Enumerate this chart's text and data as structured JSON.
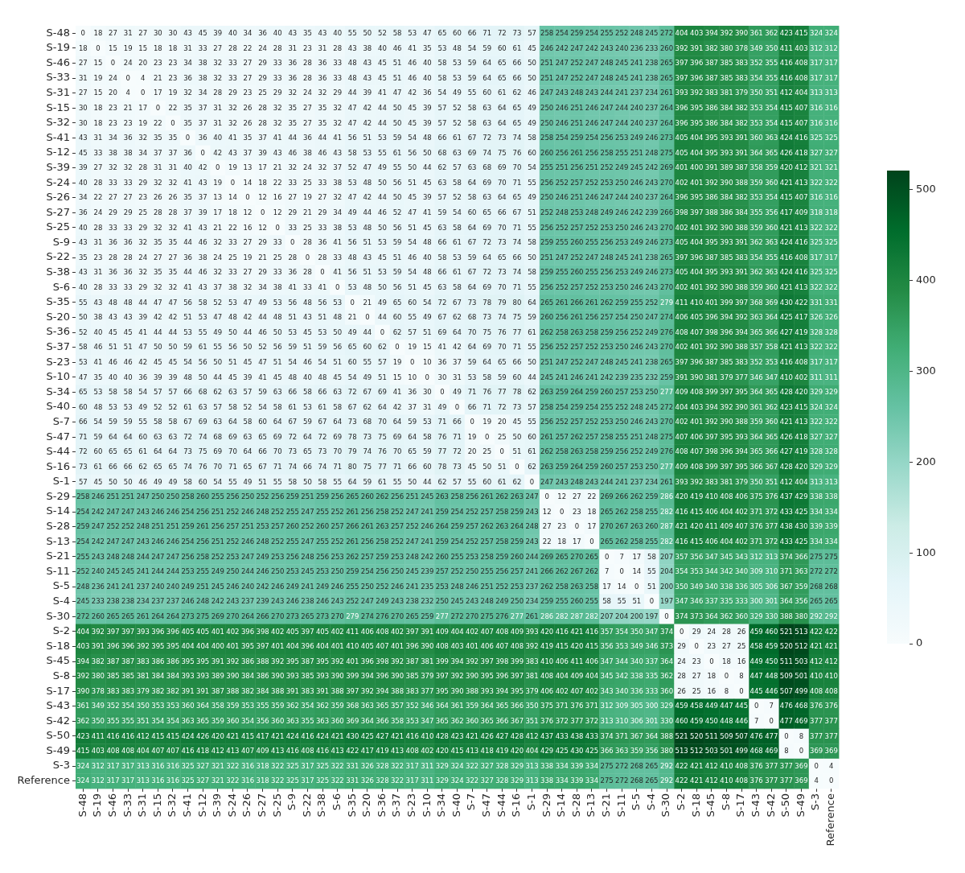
{
  "chart_data": {
    "type": "heatmap",
    "categories": [
      "S-48",
      "S-19",
      "S-46",
      "S-33",
      "S-31",
      "S-15",
      "S-32",
      "S-41",
      "S-12",
      "S-39",
      "S-24",
      "S-26",
      "S-27",
      "S-25",
      "S-9",
      "S-22",
      "S-38",
      "S-6",
      "S-35",
      "S-20",
      "S-36",
      "S-37",
      "S-23",
      "S-10",
      "S-34",
      "S-40",
      "S-7",
      "S-47",
      "S-44",
      "S-16",
      "S-1",
      "S-29",
      "S-14",
      "S-28",
      "S-13",
      "S-21",
      "S-11",
      "S-5",
      "S-4",
      "S-30",
      "S-2",
      "S-18",
      "S-45",
      "S-8",
      "S-17",
      "S-43",
      "S-42",
      "S-50",
      "S-49",
      "S-3",
      "Reference"
    ],
    "y_categories": [
      "S-48",
      "S-19",
      "S-46",
      "S-33",
      "S-31",
      "S-15",
      "S-32",
      "S-41",
      "S-12",
      "S-39",
      "S-24",
      "S-26",
      "S-27",
      "S-25",
      "S-9",
      "S-22",
      "S-38",
      "S-6",
      "S-35",
      "S-20",
      "S-36",
      "S-37",
      "S-23",
      "S-10",
      "S-34",
      "S-40",
      "S-7",
      "S-47",
      "S-44",
      "S-16",
      "S-1",
      "S-29",
      "S-14",
      "S-28",
      "S-13",
      "S-21",
      "S-11",
      "S-5",
      "S-4",
      "S-30",
      "S-2",
      "S-18",
      "S-45",
      "S-8",
      "S-17",
      "S-43",
      "S-42",
      "S-50",
      "S-49",
      "S-3",
      "Reference"
    ],
    "cells": [
      [
        0,
        18,
        27,
        31,
        27,
        30,
        30,
        43,
        45,
        39,
        40,
        34,
        36,
        40,
        43,
        35,
        43,
        40,
        55,
        50,
        52,
        58,
        53,
        47,
        65,
        60,
        66,
        71,
        72,
        73,
        57,
        258,
        254,
        259,
        254,
        255,
        252,
        248,
        245,
        272,
        404,
        403,
        394,
        392,
        390,
        361,
        362,
        423,
        415,
        324,
        324
      ],
      [
        18,
        0,
        15,
        19,
        15,
        18,
        18,
        31,
        33,
        27,
        28,
        22,
        24,
        28,
        31,
        23,
        31,
        28,
        43,
        38,
        40,
        46,
        41,
        35,
        53,
        48,
        54,
        59,
        60,
        61,
        45,
        246,
        242,
        247,
        242,
        243,
        240,
        236,
        233,
        260,
        392,
        391,
        382,
        380,
        378,
        349,
        350,
        411,
        403,
        312,
        312
      ],
      [
        27,
        15,
        0,
        24,
        20,
        23,
        23,
        34,
        38,
        32,
        33,
        27,
        29,
        33,
        36,
        28,
        36,
        33,
        48,
        43,
        45,
        51,
        46,
        40,
        58,
        53,
        59,
        64,
        65,
        66,
        50,
        251,
        247,
        252,
        247,
        248,
        245,
        241,
        238,
        265,
        397,
        396,
        387,
        385,
        383,
        352,
        355,
        416,
        408,
        317,
        317
      ],
      [
        31,
        19,
        24,
        0,
        4,
        21,
        23,
        36,
        38,
        32,
        33,
        27,
        29,
        33,
        36,
        28,
        36,
        33,
        48,
        43,
        45,
        51,
        46,
        40,
        58,
        53,
        59,
        64,
        65,
        66,
        50,
        251,
        247,
        252,
        247,
        248,
        245,
        241,
        238,
        265,
        397,
        396,
        387,
        385,
        383,
        354,
        355,
        416,
        408,
        317,
        317
      ],
      [
        27,
        15,
        20,
        4,
        0,
        17,
        19,
        32,
        34,
        28,
        29,
        23,
        25,
        29,
        32,
        24,
        32,
        29,
        44,
        39,
        41,
        47,
        42,
        36,
        54,
        49,
        55,
        60,
        61,
        62,
        46,
        247,
        243,
        248,
        243,
        244,
        241,
        237,
        234,
        261,
        393,
        392,
        383,
        381,
        379,
        350,
        351,
        412,
        404,
        313,
        313
      ],
      [
        30,
        18,
        23,
        21,
        17,
        0,
        22,
        35,
        37,
        31,
        32,
        26,
        28,
        32,
        35,
        27,
        35,
        32,
        47,
        42,
        44,
        50,
        45,
        39,
        57,
        52,
        58,
        63,
        64,
        65,
        49,
        250,
        246,
        251,
        246,
        247,
        244,
        240,
        237,
        264,
        396,
        395,
        386,
        384,
        382,
        353,
        354,
        415,
        407,
        316,
        316
      ],
      [
        30,
        18,
        23,
        23,
        19,
        22,
        0,
        35,
        37,
        31,
        32,
        26,
        28,
        32,
        35,
        27,
        35,
        32,
        47,
        42,
        44,
        50,
        45,
        39,
        57,
        52,
        58,
        63,
        64,
        65,
        49,
        250,
        246,
        251,
        246,
        247,
        244,
        240,
        237,
        264,
        396,
        395,
        386,
        384,
        382,
        353,
        354,
        415,
        407,
        316,
        316
      ],
      [
        43,
        31,
        34,
        36,
        32,
        35,
        35,
        0,
        36,
        40,
        41,
        35,
        37,
        41,
        44,
        36,
        44,
        41,
        56,
        51,
        53,
        59,
        54,
        48,
        66,
        61,
        67,
        72,
        73,
        74,
        58,
        258,
        254,
        259,
        254,
        256,
        253,
        249,
        246,
        273,
        405,
        404,
        395,
        393,
        391,
        360,
        363,
        424,
        416,
        325,
        325
      ],
      [
        45,
        33,
        38,
        38,
        34,
        37,
        37,
        36,
        0,
        42,
        43,
        37,
        39,
        43,
        46,
        38,
        46,
        43,
        58,
        53,
        55,
        61,
        56,
        50,
        68,
        63,
        69,
        74,
        75,
        76,
        60,
        260,
        256,
        261,
        256,
        258,
        255,
        251,
        248,
        275,
        405,
        404,
        395,
        393,
        391,
        364,
        365,
        426,
        418,
        327,
        327
      ],
      [
        39,
        27,
        32,
        32,
        28,
        31,
        31,
        40,
        42,
        0,
        19,
        13,
        17,
        21,
        32,
        24,
        32,
        37,
        52,
        47,
        49,
        55,
        50,
        44,
        62,
        57,
        63,
        68,
        69,
        70,
        54,
        255,
        251,
        256,
        251,
        252,
        249,
        245,
        242,
        269,
        401,
        400,
        391,
        389,
        387,
        358,
        359,
        420,
        412,
        321,
        321
      ],
      [
        40,
        28,
        33,
        33,
        29,
        32,
        32,
        41,
        43,
        19,
        0,
        14,
        18,
        22,
        33,
        25,
        33,
        38,
        53,
        48,
        50,
        56,
        51,
        45,
        63,
        58,
        64,
        69,
        70,
        71,
        55,
        256,
        252,
        257,
        252,
        253,
        250,
        246,
        243,
        270,
        402,
        401,
        392,
        390,
        388,
        359,
        360,
        421,
        413,
        322,
        322
      ],
      [
        34,
        22,
        27,
        27,
        23,
        26,
        26,
        35,
        37,
        13,
        14,
        0,
        12,
        16,
        27,
        19,
        27,
        32,
        47,
        42,
        44,
        50,
        45,
        39,
        57,
        52,
        58,
        63,
        64,
        65,
        49,
        250,
        246,
        251,
        246,
        247,
        244,
        240,
        237,
        264,
        396,
        395,
        386,
        384,
        382,
        353,
        354,
        415,
        407,
        316,
        316
      ],
      [
        36,
        24,
        29,
        29,
        25,
        28,
        28,
        37,
        39,
        17,
        18,
        12,
        0,
        12,
        29,
        21,
        29,
        34,
        49,
        44,
        46,
        52,
        47,
        41,
        59,
        54,
        60,
        65,
        66,
        67,
        51,
        252,
        248,
        253,
        248,
        249,
        246,
        242,
        239,
        266,
        398,
        397,
        388,
        386,
        384,
        355,
        356,
        417,
        409,
        318,
        318
      ],
      [
        40,
        28,
        33,
        33,
        29,
        32,
        32,
        41,
        43,
        21,
        22,
        16,
        12,
        0,
        33,
        25,
        33,
        38,
        53,
        48,
        50,
        56,
        51,
        45,
        63,
        58,
        64,
        69,
        70,
        71,
        55,
        256,
        252,
        257,
        252,
        253,
        250,
        246,
        243,
        270,
        402,
        401,
        392,
        390,
        388,
        359,
        360,
        421,
        413,
        322,
        322
      ],
      [
        43,
        31,
        36,
        36,
        32,
        35,
        35,
        44,
        46,
        32,
        33,
        27,
        29,
        33,
        0,
        28,
        36,
        41,
        56,
        51,
        53,
        59,
        54,
        48,
        66,
        61,
        67,
        72,
        73,
        74,
        58,
        259,
        255,
        260,
        255,
        256,
        253,
        249,
        246,
        273,
        405,
        404,
        395,
        393,
        391,
        362,
        363,
        424,
        416,
        325,
        325
      ],
      [
        35,
        23,
        28,
        28,
        24,
        27,
        27,
        36,
        38,
        24,
        25,
        19,
        21,
        25,
        28,
        0,
        28,
        33,
        48,
        43,
        45,
        51,
        46,
        40,
        58,
        53,
        59,
        64,
        65,
        66,
        50,
        251,
        247,
        252,
        247,
        248,
        245,
        241,
        238,
        265,
        397,
        396,
        387,
        385,
        383,
        354,
        355,
        416,
        408,
        317,
        317
      ],
      [
        43,
        31,
        36,
        36,
        32,
        35,
        35,
        44,
        46,
        32,
        33,
        27,
        29,
        33,
        36,
        28,
        0,
        41,
        56,
        51,
        53,
        59,
        54,
        48,
        66,
        61,
        67,
        72,
        73,
        74,
        58,
        259,
        255,
        260,
        255,
        256,
        253,
        249,
        246,
        273,
        405,
        404,
        395,
        393,
        391,
        362,
        363,
        424,
        416,
        325,
        325
      ],
      [
        40,
        28,
        33,
        33,
        29,
        32,
        32,
        41,
        43,
        37,
        38,
        32,
        34,
        38,
        41,
        33,
        41,
        0,
        53,
        48,
        50,
        56,
        51,
        45,
        63,
        58,
        64,
        69,
        70,
        71,
        55,
        256,
        252,
        257,
        252,
        253,
        250,
        246,
        243,
        270,
        402,
        401,
        392,
        390,
        388,
        359,
        360,
        421,
        413,
        322,
        322
      ],
      [
        55,
        43,
        48,
        48,
        44,
        47,
        47,
        56,
        58,
        52,
        53,
        47,
        49,
        53,
        56,
        48,
        56,
        53,
        0,
        21,
        49,
        65,
        60,
        54,
        72,
        67,
        73,
        78,
        79,
        80,
        64,
        265,
        261,
        266,
        261,
        262,
        259,
        255,
        252,
        279,
        411,
        410,
        401,
        399,
        397,
        368,
        369,
        430,
        422,
        331,
        331
      ],
      [
        50,
        38,
        43,
        43,
        39,
        42,
        42,
        51,
        53,
        47,
        48,
        42,
        44,
        48,
        51,
        43,
        51,
        48,
        21,
        0,
        44,
        60,
        55,
        49,
        67,
        62,
        68,
        73,
        74,
        75,
        59,
        260,
        256,
        261,
        256,
        257,
        254,
        250,
        247,
        274,
        406,
        405,
        396,
        394,
        392,
        363,
        364,
        425,
        417,
        326,
        326
      ],
      [
        52,
        40,
        45,
        45,
        41,
        44,
        44,
        53,
        55,
        49,
        50,
        44,
        46,
        50,
        53,
        45,
        53,
        50,
        49,
        44,
        0,
        62,
        57,
        51,
        69,
        64,
        70,
        75,
        76,
        77,
        61,
        262,
        258,
        263,
        258,
        259,
        256,
        252,
        249,
        276,
        408,
        407,
        398,
        396,
        394,
        365,
        366,
        427,
        419,
        328,
        328
      ],
      [
        58,
        46,
        51,
        51,
        47,
        50,
        50,
        59,
        61,
        55,
        56,
        50,
        52,
        56,
        59,
        51,
        59,
        56,
        65,
        60,
        62,
        0,
        19,
        15,
        41,
        42,
        64,
        69,
        70,
        71,
        55,
        256,
        252,
        257,
        252,
        253,
        250,
        246,
        243,
        270,
        402,
        401,
        392,
        390,
        388,
        357,
        358,
        421,
        413,
        322,
        322
      ],
      [
        53,
        41,
        46,
        46,
        42,
        45,
        45,
        54,
        56,
        50,
        51,
        45,
        47,
        51,
        54,
        46,
        54,
        51,
        60,
        55,
        57,
        19,
        0,
        10,
        36,
        37,
        59,
        64,
        65,
        66,
        50,
        251,
        247,
        252,
        247,
        248,
        245,
        241,
        238,
        265,
        397,
        396,
        387,
        385,
        383,
        352,
        353,
        416,
        408,
        317,
        317
      ],
      [
        47,
        35,
        40,
        40,
        36,
        39,
        39,
        48,
        50,
        44,
        45,
        39,
        41,
        45,
        48,
        40,
        48,
        45,
        54,
        49,
        51,
        15,
        10,
        0,
        30,
        31,
        53,
        58,
        59,
        60,
        44,
        245,
        241,
        246,
        241,
        242,
        239,
        235,
        232,
        259,
        391,
        390,
        381,
        379,
        377,
        346,
        347,
        410,
        402,
        311,
        311
      ],
      [
        65,
        53,
        58,
        58,
        54,
        57,
        57,
        66,
        68,
        62,
        63,
        57,
        59,
        63,
        66,
        58,
        66,
        63,
        72,
        67,
        69,
        41,
        36,
        30,
        0,
        49,
        71,
        76,
        77,
        78,
        62,
        263,
        259,
        264,
        259,
        260,
        257,
        253,
        250,
        277,
        409,
        408,
        399,
        397,
        395,
        364,
        365,
        428,
        420,
        329,
        329
      ],
      [
        60,
        48,
        53,
        53,
        49,
        52,
        52,
        61,
        63,
        57,
        58,
        52,
        54,
        58,
        61,
        53,
        61,
        58,
        67,
        62,
        64,
        42,
        37,
        31,
        49,
        0,
        66,
        71,
        72,
        73,
        57,
        258,
        254,
        259,
        254,
        255,
        252,
        248,
        245,
        272,
        404,
        403,
        394,
        392,
        390,
        361,
        362,
        423,
        415,
        324,
        324
      ],
      [
        66,
        54,
        59,
        59,
        55,
        58,
        58,
        67,
        69,
        63,
        64,
        58,
        60,
        64,
        67,
        59,
        67,
        64,
        73,
        68,
        70,
        64,
        59,
        53,
        71,
        66,
        0,
        19,
        20,
        45,
        55,
        256,
        252,
        257,
        252,
        253,
        250,
        246,
        243,
        270,
        402,
        401,
        392,
        390,
        388,
        359,
        360,
        421,
        413,
        322,
        322
      ],
      [
        71,
        59,
        64,
        64,
        60,
        63,
        63,
        72,
        74,
        68,
        69,
        63,
        65,
        69,
        72,
        64,
        72,
        69,
        78,
        73,
        75,
        69,
        64,
        58,
        76,
        71,
        19,
        0,
        25,
        50,
        60,
        261,
        257,
        262,
        257,
        258,
        255,
        251,
        248,
        275,
        407,
        406,
        397,
        395,
        393,
        364,
        365,
        426,
        418,
        327,
        327
      ],
      [
        72,
        60,
        65,
        65,
        61,
        64,
        64,
        73,
        75,
        69,
        70,
        64,
        66,
        70,
        73,
        65,
        73,
        70,
        79,
        74,
        76,
        70,
        65,
        59,
        77,
        72,
        20,
        25,
        0,
        51,
        61,
        262,
        258,
        263,
        258,
        259,
        256,
        252,
        249,
        276,
        408,
        407,
        398,
        396,
        394,
        365,
        366,
        427,
        419,
        328,
        328
      ],
      [
        73,
        61,
        66,
        66,
        62,
        65,
        65,
        74,
        76,
        70,
        71,
        65,
        67,
        71,
        74,
        66,
        74,
        71,
        80,
        75,
        77,
        71,
        66,
        60,
        78,
        73,
        45,
        50,
        51,
        0,
        62,
        263,
        259,
        264,
        259,
        260,
        257,
        253,
        250,
        277,
        409,
        408,
        399,
        397,
        395,
        366,
        367,
        428,
        420,
        329,
        329
      ],
      [
        57,
        45,
        50,
        50,
        46,
        49,
        49,
        58,
        60,
        54,
        55,
        49,
        51,
        55,
        58,
        50,
        58,
        55,
        64,
        59,
        61,
        55,
        50,
        44,
        62,
        57,
        55,
        60,
        61,
        62,
        0,
        247,
        243,
        248,
        243,
        244,
        241,
        237,
        234,
        261,
        393,
        392,
        383,
        381,
        379,
        350,
        351,
        412,
        404,
        313,
        313
      ],
      [
        258,
        246,
        251,
        251,
        247,
        250,
        250,
        258,
        260,
        255,
        256,
        250,
        252,
        256,
        259,
        251,
        259,
        256,
        265,
        260,
        262,
        256,
        251,
        245,
        263,
        258,
        256,
        261,
        262,
        263,
        247,
        0,
        12,
        27,
        22,
        269,
        266,
        262,
        259,
        286,
        420,
        419,
        410,
        408,
        406,
        375,
        376,
        437,
        429,
        338,
        338
      ],
      [
        254,
        242,
        247,
        247,
        243,
        246,
        246,
        254,
        256,
        251,
        252,
        246,
        248,
        252,
        255,
        247,
        255,
        252,
        261,
        256,
        258,
        252,
        247,
        241,
        259,
        254,
        252,
        257,
        258,
        259,
        243,
        12,
        0,
        23,
        18,
        265,
        262,
        258,
        255,
        282,
        416,
        415,
        406,
        404,
        402,
        371,
        372,
        433,
        425,
        334,
        334
      ],
      [
        259,
        247,
        252,
        252,
        248,
        251,
        251,
        259,
        261,
        256,
        257,
        251,
        253,
        257,
        260,
        252,
        260,
        257,
        266,
        261,
        263,
        257,
        252,
        246,
        264,
        259,
        257,
        262,
        263,
        264,
        248,
        27,
        23,
        0,
        17,
        270,
        267,
        263,
        260,
        287,
        421,
        420,
        411,
        409,
        407,
        376,
        377,
        438,
        430,
        339,
        339
      ],
      [
        254,
        242,
        247,
        247,
        243,
        246,
        246,
        254,
        256,
        251,
        252,
        246,
        248,
        252,
        255,
        247,
        255,
        252,
        261,
        256,
        258,
        252,
        247,
        241,
        259,
        254,
        252,
        257,
        258,
        259,
        243,
        22,
        18,
        17,
        0,
        265,
        262,
        258,
        255,
        282,
        416,
        415,
        406,
        404,
        402,
        371,
        372,
        433,
        425,
        334,
        334
      ],
      [
        255,
        243,
        248,
        248,
        244,
        247,
        247,
        256,
        258,
        252,
        253,
        247,
        249,
        253,
        256,
        248,
        256,
        253,
        262,
        257,
        259,
        253,
        248,
        242,
        260,
        255,
        253,
        258,
        259,
        260,
        244,
        269,
        265,
        270,
        265,
        0,
        7,
        17,
        58,
        207,
        357,
        356,
        347,
        345,
        343,
        312,
        313,
        374,
        366,
        275,
        275
      ],
      [
        252,
        240,
        245,
        245,
        241,
        244,
        244,
        253,
        255,
        249,
        250,
        244,
        246,
        250,
        253,
        245,
        253,
        250,
        259,
        254,
        256,
        250,
        245,
        239,
        257,
        252,
        250,
        255,
        256,
        257,
        241,
        266,
        262,
        267,
        262,
        7,
        0,
        14,
        55,
        204,
        354,
        353,
        344,
        342,
        340,
        309,
        310,
        371,
        363,
        272,
        272
      ],
      [
        248,
        236,
        241,
        241,
        237,
        240,
        240,
        249,
        251,
        245,
        246,
        240,
        242,
        246,
        249,
        241,
        249,
        246,
        255,
        250,
        252,
        246,
        241,
        235,
        253,
        248,
        246,
        251,
        252,
        253,
        237,
        262,
        258,
        263,
        258,
        17,
        14,
        0,
        51,
        200,
        350,
        349,
        340,
        338,
        336,
        305,
        306,
        367,
        359,
        268,
        268
      ],
      [
        245,
        233,
        238,
        238,
        234,
        237,
        237,
        246,
        248,
        242,
        243,
        237,
        239,
        243,
        246,
        238,
        246,
        243,
        252,
        247,
        249,
        243,
        238,
        232,
        250,
        245,
        243,
        248,
        249,
        250,
        234,
        259,
        255,
        260,
        255,
        58,
        55,
        51,
        0,
        197,
        347,
        346,
        337,
        335,
        333,
        300,
        301,
        364,
        356,
        265,
        265
      ],
      [
        272,
        260,
        265,
        265,
        261,
        264,
        264,
        273,
        275,
        269,
        270,
        264,
        266,
        270,
        273,
        265,
        273,
        270,
        279,
        274,
        276,
        270,
        265,
        259,
        277,
        272,
        270,
        275,
        276,
        277,
        261,
        286,
        282,
        287,
        282,
        207,
        204,
        200,
        197,
        0,
        374,
        373,
        364,
        362,
        360,
        329,
        330,
        388,
        380,
        292,
        292
      ],
      [
        404,
        392,
        397,
        397,
        393,
        396,
        396,
        405,
        405,
        401,
        402,
        396,
        398,
        402,
        405,
        397,
        405,
        402,
        411,
        406,
        408,
        402,
        397,
        391,
        409,
        404,
        402,
        407,
        408,
        409,
        393,
        420,
        416,
        421,
        416,
        357,
        354,
        350,
        347,
        374,
        0,
        29,
        24,
        28,
        26,
        459,
        460,
        521,
        513,
        422,
        422
      ],
      [
        403,
        391,
        396,
        396,
        392,
        395,
        395,
        404,
        404,
        400,
        401,
        395,
        397,
        401,
        404,
        396,
        404,
        401,
        410,
        405,
        407,
        401,
        396,
        390,
        408,
        403,
        401,
        406,
        407,
        408,
        392,
        419,
        415,
        420,
        415,
        356,
        353,
        349,
        346,
        373,
        29,
        0,
        23,
        27,
        25,
        458,
        459,
        520,
        512,
        421,
        421
      ],
      [
        394,
        382,
        387,
        387,
        383,
        386,
        386,
        395,
        395,
        391,
        392,
        386,
        388,
        392,
        395,
        387,
        395,
        392,
        401,
        396,
        398,
        392,
        387,
        381,
        399,
        394,
        392,
        397,
        398,
        399,
        383,
        410,
        406,
        411,
        406,
        347,
        344,
        340,
        337,
        364,
        24,
        23,
        0,
        18,
        16,
        449,
        450,
        511,
        503,
        412,
        412
      ],
      [
        392,
        380,
        385,
        385,
        381,
        384,
        384,
        393,
        393,
        389,
        390,
        384,
        386,
        390,
        393,
        385,
        393,
        390,
        399,
        394,
        396,
        390,
        385,
        379,
        397,
        392,
        390,
        395,
        396,
        397,
        381,
        408,
        404,
        409,
        404,
        345,
        342,
        338,
        335,
        362,
        28,
        27,
        18,
        0,
        8,
        447,
        448,
        509,
        501,
        410,
        410
      ],
      [
        390,
        378,
        383,
        383,
        379,
        382,
        382,
        391,
        391,
        387,
        388,
        382,
        384,
        388,
        391,
        383,
        391,
        388,
        397,
        392,
        394,
        388,
        383,
        377,
        395,
        390,
        388,
        393,
        394,
        395,
        379,
        406,
        402,
        407,
        402,
        343,
        340,
        336,
        333,
        360,
        26,
        25,
        16,
        8,
        0,
        445,
        446,
        507,
        499,
        408,
        408
      ],
      [
        361,
        349,
        352,
        354,
        350,
        353,
        353,
        360,
        364,
        358,
        359,
        353,
        355,
        359,
        362,
        354,
        362,
        359,
        368,
        363,
        365,
        357,
        352,
        346,
        364,
        361,
        359,
        364,
        365,
        366,
        350,
        375,
        371,
        376,
        371,
        312,
        309,
        305,
        300,
        329,
        459,
        458,
        449,
        447,
        445,
        0,
        7,
        476,
        468,
        376,
        376
      ],
      [
        362,
        350,
        355,
        355,
        351,
        354,
        354,
        363,
        365,
        359,
        360,
        354,
        356,
        360,
        363,
        355,
        363,
        360,
        369,
        364,
        366,
        358,
        353,
        347,
        365,
        362,
        360,
        365,
        366,
        367,
        351,
        376,
        372,
        377,
        372,
        313,
        310,
        306,
        301,
        330,
        460,
        459,
        450,
        448,
        446,
        7,
        0,
        477,
        469,
        377,
        377
      ],
      [
        423,
        411,
        416,
        416,
        412,
        415,
        415,
        424,
        426,
        420,
        421,
        415,
        417,
        421,
        424,
        416,
        424,
        421,
        430,
        425,
        427,
        421,
        416,
        410,
        428,
        423,
        421,
        426,
        427,
        428,
        412,
        437,
        433,
        438,
        433,
        374,
        371,
        367,
        364,
        388,
        521,
        520,
        511,
        509,
        507,
        476,
        477,
        0,
        8,
        377,
        377
      ],
      [
        415,
        403,
        408,
        408,
        404,
        407,
        407,
        416,
        418,
        412,
        413,
        407,
        409,
        413,
        416,
        408,
        416,
        413,
        422,
        417,
        419,
        413,
        408,
        402,
        420,
        415,
        413,
        418,
        419,
        420,
        404,
        429,
        425,
        430,
        425,
        366,
        363,
        359,
        356,
        380,
        513,
        512,
        503,
        501,
        499,
        468,
        469,
        8,
        0,
        369,
        369
      ],
      [
        324,
        312,
        317,
        317,
        313,
        316,
        316,
        325,
        327,
        321,
        322,
        316,
        318,
        322,
        325,
        317,
        325,
        322,
        331,
        326,
        328,
        322,
        317,
        311,
        329,
        324,
        322,
        327,
        328,
        329,
        313,
        338,
        334,
        339,
        334,
        275,
        272,
        268,
        265,
        292,
        422,
        421,
        412,
        410,
        408,
        376,
        377,
        377,
        369,
        0,
        4
      ],
      [
        324,
        312,
        317,
        317,
        313,
        316,
        316,
        325,
        327,
        321,
        322,
        316,
        318,
        322,
        325,
        317,
        325,
        322,
        331,
        326,
        328,
        322,
        317,
        311,
        329,
        324,
        322,
        327,
        328,
        329,
        313,
        338,
        334,
        339,
        334,
        275,
        272,
        268,
        265,
        292,
        422,
        421,
        412,
        410,
        408,
        376,
        377,
        377,
        369,
        4,
        0
      ]
    ],
    "clim": [
      0,
      521
    ],
    "cticks": [
      0,
      100,
      200,
      300,
      400,
      500
    ],
    "data_labels": true
  }
}
